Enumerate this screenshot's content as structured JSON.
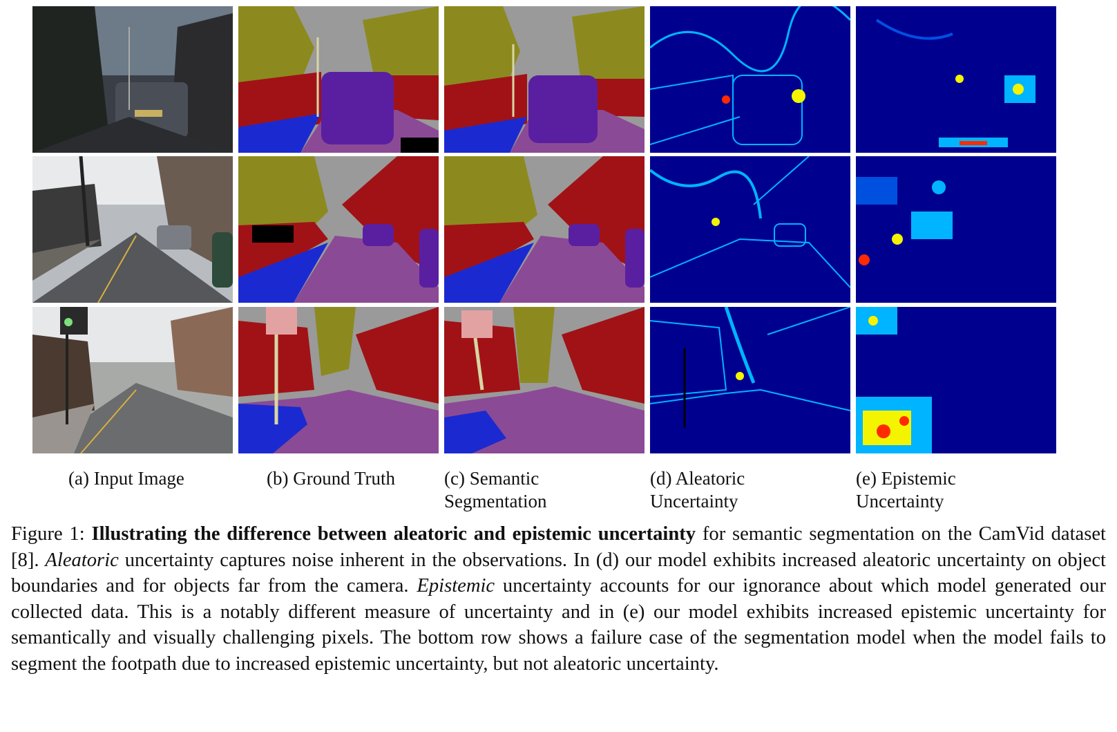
{
  "figure": {
    "columns": [
      {
        "label_line1": "(a) Input Image",
        "label_line2": ""
      },
      {
        "label_line1": "(b) Ground Truth",
        "label_line2": ""
      },
      {
        "label_line1": "(c) Semantic",
        "label_line2": "Segmentation"
      },
      {
        "label_line1": "(d) Aleatoric",
        "label_line2": "Uncertainty"
      },
      {
        "label_line1": "(e) Epistemic",
        "label_line2": "Uncertainty"
      }
    ],
    "colors": {
      "sky": "#9a9a9a",
      "tree": "#8c8a1e",
      "building": "#a11216",
      "road": "#8b4a95",
      "pavement": "#1b2ad0",
      "car": "#5a1fa0",
      "pole": "#d8d6a4",
      "sign": "#e3a2a2",
      "heat_bg": "#00008f",
      "heat_mid": "#00b4ff",
      "heat_hot": "#f4f400",
      "heat_max": "#ff2a00"
    }
  },
  "caption": {
    "prefix": "Figure 1: ",
    "bold": "Illustrating the difference between aleatoric and epistemic uncertainty",
    "text1": " for semantic segmentation on the CamVid dataset [8]. ",
    "italic1": "Aleatoric",
    "text2": " uncertainty captures noise inherent in the observations. In (d) our model exhibits increased aleatoric uncertainty on object boundaries and for objects far from the camera. ",
    "italic2": "Epistemic",
    "text3": " uncertainty accounts for our ignorance about which model generated our collected data. This is a notably different measure of uncertainty and in (e) our model exhibits increased epistemic uncertainty for semantically and visually challenging pixels. The bottom row shows a failure case of the segmentation model when the model fails to segment the footpath due to increased epistemic uncertainty, but not aleatoric uncertainty."
  }
}
